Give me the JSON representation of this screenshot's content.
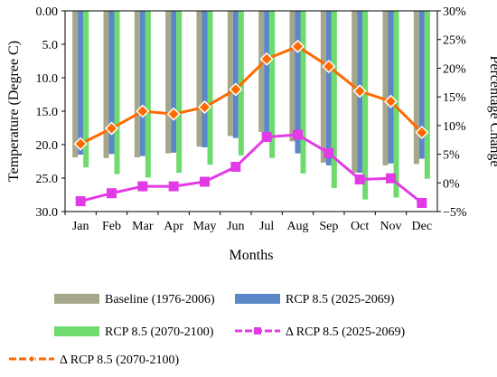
{
  "chart_data": {
    "type": "bar",
    "categories": [
      "Jan",
      "Feb",
      "Mar",
      "Apr",
      "May",
      "Jun",
      "Jul",
      "Aug",
      "Sep",
      "Oct",
      "Nov",
      "Dec"
    ],
    "xlabel": "Months",
    "ylabel": "Temperature (Degree C)",
    "y2label": "Percentage Change",
    "ylim": [
      0,
      30
    ],
    "y_inverted": true,
    "y_ticks": [
      "0.00",
      "5.0",
      "10.0",
      "15.0",
      "20.0",
      "25.0",
      "30.0"
    ],
    "y2lim": [
      -5,
      30
    ],
    "y2_ticks": [
      "30%",
      "25%",
      "20%",
      "15%",
      "10%",
      "5%",
      "0%",
      "−5%"
    ],
    "legend_position": "bottom",
    "bar_series": [
      {
        "name": "Baseline (1976-2006)",
        "color": "#a6a78a",
        "values": [
          21.9,
          22.0,
          21.9,
          21.3,
          20.3,
          18.7,
          18.1,
          19.5,
          22.7,
          24.2,
          23.1,
          22.9
        ]
      },
      {
        "name": "RCP 8.5 (2025-2069)",
        "color": "#5b86c8",
        "values": [
          21.5,
          21.4,
          21.7,
          21.2,
          20.4,
          19.0,
          19.2,
          21.3,
          23.1,
          24.2,
          22.8,
          22.1
        ]
      },
      {
        "name": "RCP 8.5 (2070-2100)",
        "color": "#6ddb6d",
        "values": [
          23.4,
          24.4,
          24.9,
          24.2,
          23.0,
          21.6,
          22.0,
          24.3,
          26.5,
          28.2,
          27.9,
          25.1
        ]
      }
    ],
    "line_series": [
      {
        "name": "Δ RCP 8.5 (2025-2069)",
        "color": "#e23be6",
        "marker": "square",
        "values": [
          -3.2,
          -1.8,
          -0.6,
          -0.6,
          0.2,
          2.8,
          8.0,
          8.4,
          5.2,
          0.6,
          0.8,
          -3.5
        ]
      },
      {
        "name": "Δ  RCP 8.5 (2070-2100)",
        "color": "#ff6a00",
        "marker": "diamond",
        "values": [
          6.8,
          9.5,
          12.5,
          12.0,
          13.2,
          16.3,
          21.6,
          23.8,
          20.3,
          16.0,
          14.2,
          8.8
        ]
      }
    ]
  }
}
